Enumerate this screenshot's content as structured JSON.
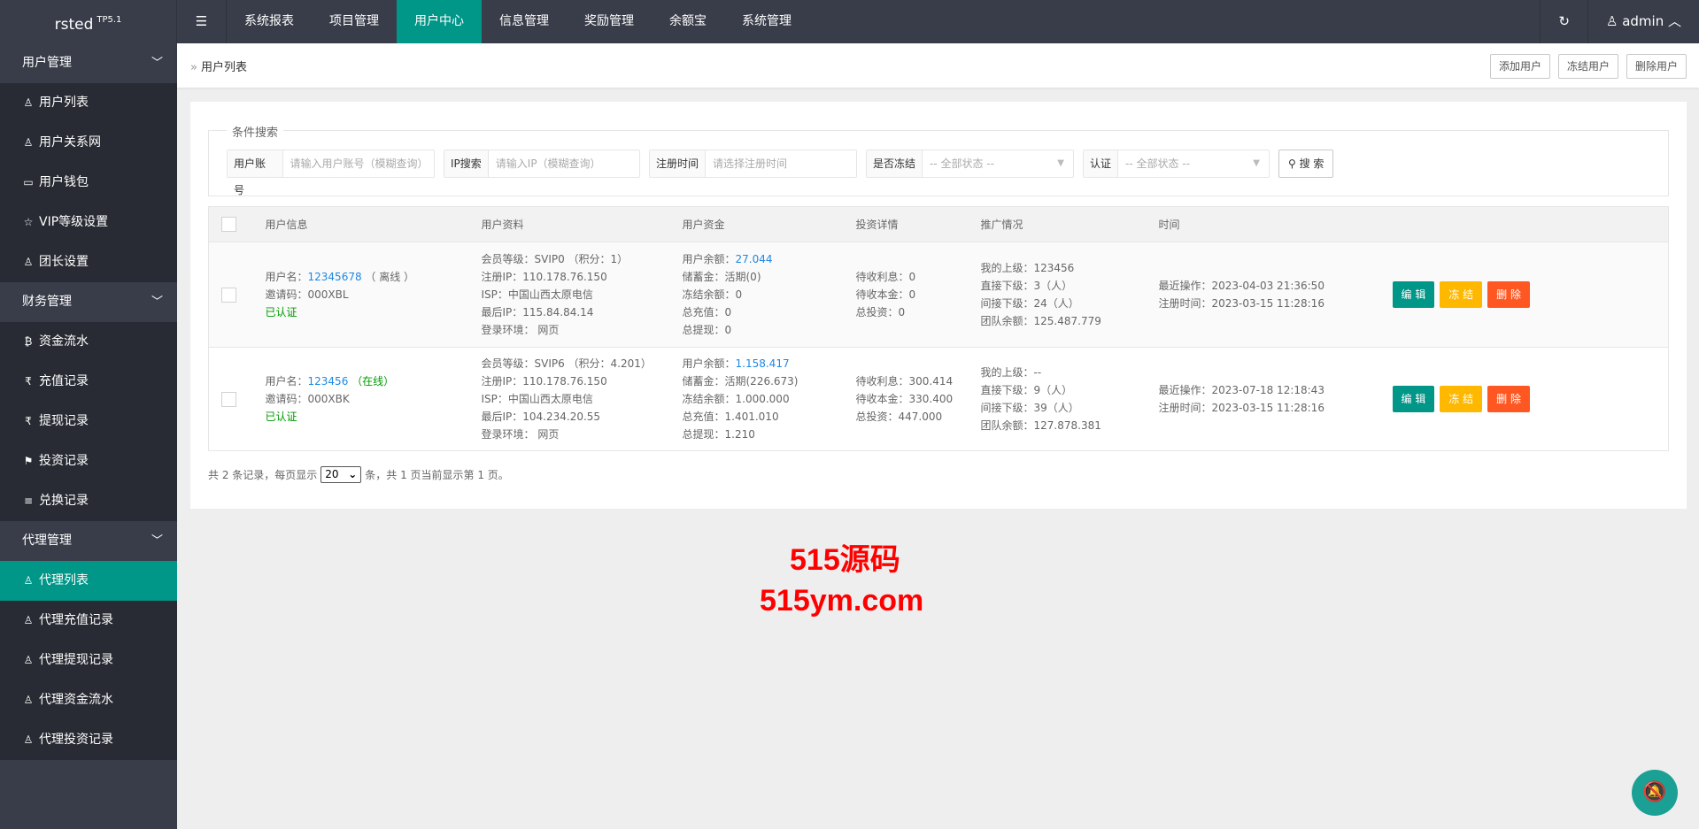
{
  "header": {
    "logo": "rsted",
    "logo_sup": "TP5.1",
    "nav": [
      "系统报表",
      "项目管理",
      "用户中心",
      "信息管理",
      "奖励管理",
      "余额宝",
      "系统管理"
    ],
    "active_nav": 2,
    "user": "admin"
  },
  "sidebar": {
    "groups": [
      {
        "label": "用户管理",
        "items": [
          {
            "label": "用户列表",
            "icon": "user-icon"
          },
          {
            "label": "用户关系网",
            "icon": "users-icon"
          },
          {
            "label": "用户钱包",
            "icon": "card-icon"
          },
          {
            "label": "VIP等级设置",
            "icon": "star-icon"
          },
          {
            "label": "团长设置",
            "icon": "users-icon"
          }
        ]
      },
      {
        "label": "财务管理",
        "items": [
          {
            "label": "资金流水",
            "icon": "bitcoin-icon"
          },
          {
            "label": "充值记录",
            "icon": "rupee-icon"
          },
          {
            "label": "提现记录",
            "icon": "rupee-icon"
          },
          {
            "label": "投资记录",
            "icon": "flag-icon"
          },
          {
            "label": "兑换记录",
            "icon": "list-icon"
          }
        ]
      },
      {
        "label": "代理管理",
        "items": [
          {
            "label": "代理列表",
            "icon": "user-icon",
            "active": true
          },
          {
            "label": "代理充值记录",
            "icon": "user-icon"
          },
          {
            "label": "代理提现记录",
            "icon": "user-icon"
          },
          {
            "label": "代理资金流水",
            "icon": "user-icon"
          },
          {
            "label": "代理投资记录",
            "icon": "user-icon"
          }
        ]
      }
    ]
  },
  "breadcrumb": "用户列表",
  "toolbar": {
    "add": "添加用户",
    "freeze": "冻结用户",
    "delete": "删除用户"
  },
  "search": {
    "legend": "条件搜索",
    "fields": [
      {
        "label": "用户账号",
        "placeholder": "请输入用户账号（模糊查询）"
      },
      {
        "label": "IP搜索",
        "placeholder": "请输入IP（模糊查询）"
      },
      {
        "label": "注册时间",
        "placeholder": "请选择注册时间"
      }
    ],
    "selects": [
      {
        "label": "是否冻结",
        "value": "-- 全部状态 --"
      },
      {
        "label": "认证",
        "value": "-- 全部状态 --"
      }
    ],
    "button": "搜 索"
  },
  "table": {
    "headers": [
      "用户信息",
      "用户资料",
      "用户资金",
      "投资详情",
      "推广情况",
      "时间"
    ],
    "rows": [
      {
        "username_label": "用户名：",
        "username": "12345678",
        "status": "（ 离线 ）",
        "online": false,
        "invite": "邀请码：000XBL",
        "verified": "已认证",
        "profile": [
          "会员等级：SVIP0 （积分：1）",
          "注册IP：110.178.76.150",
          "ISP：中国山西太原电信",
          "最后IP：115.84.84.14",
          "登录环境： 网页"
        ],
        "balance_label": "用户余额：",
        "balance": "27.044",
        "funds": [
          "储蓄金：活期(0)",
          "冻结余额：0",
          "总充值：0",
          "总提现：0"
        ],
        "invest": [
          "待收利息：0",
          "待收本金：0",
          "总投资：0"
        ],
        "promo": [
          "我的上级：123456",
          "直接下级：3（人）",
          "间接下级：24（人）",
          "团队余额：125.487.779"
        ],
        "time": [
          "最近操作：2023-04-03 21:36:50",
          "注册时间：2023-03-15 11:28:16"
        ]
      },
      {
        "username_label": "用户名：",
        "username": "123456",
        "status": "（在线）",
        "online": true,
        "invite": "邀请码：000XBK",
        "verified": "已认证",
        "profile": [
          "会员等级：SVIP6 （积分：4.201）",
          "注册IP：110.178.76.150",
          "ISP：中国山西太原电信",
          "最后IP：104.234.20.55",
          "登录环境： 网页"
        ],
        "balance_label": "用户余额：",
        "balance": "1.158.417",
        "funds": [
          "储蓄金：活期(226.673)",
          "冻结余额：1.000.000",
          "总充值：1.401.010",
          "总提现：1.210"
        ],
        "invest": [
          "待收利息：300.414",
          "待收本金：330.400",
          "总投资：447.000"
        ],
        "promo": [
          "我的上级：--",
          "直接下级：9（人）",
          "间接下级：39（人）",
          "团队余额：127.878.381"
        ],
        "time": [
          "最近操作：2023-07-18 12:18:43",
          "注册时间：2023-03-15 11:28:16"
        ]
      }
    ],
    "actions": {
      "edit": "编 辑",
      "freeze": "冻 结",
      "delete": "删 除"
    }
  },
  "footer": {
    "pre": "共 2 条记录，每页显示",
    "page_size": "20",
    "post": "条，共 1 页当前显示第 1 页。"
  },
  "watermark": {
    "line1": "515源码",
    "line2": "515ym.com"
  },
  "colors": {
    "accent": "#009688",
    "edit": "#009688",
    "freeze": "#ffb800",
    "delete": "#ff5722",
    "link": "#1e88e5"
  }
}
